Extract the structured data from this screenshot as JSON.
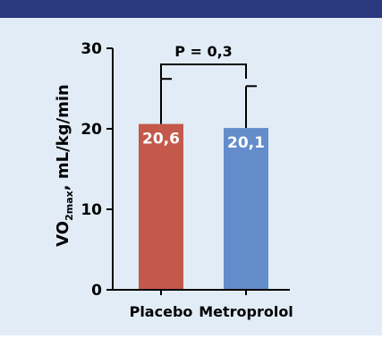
{
  "colors": {
    "top_bar": "#2a3880",
    "panel_background": "#e1ecf6",
    "axis": "#000000",
    "text": "#000000",
    "value_label": "#ffffff"
  },
  "chart_data": {
    "type": "bar",
    "categories": [
      "Placebo",
      "Metroprolol"
    ],
    "values": [
      20.6,
      20.1
    ],
    "value_labels": [
      "20,6",
      "20,1"
    ],
    "error_upper": [
      26.2,
      25.3
    ],
    "bar_colors": [
      "#c4584a",
      "#628dca"
    ],
    "y_ticks": [
      0,
      10,
      20,
      30
    ],
    "y_tick_labels": [
      "0",
      "10",
      "20",
      "30"
    ],
    "ylim": [
      0,
      30
    ],
    "ylabel": {
      "prefix": "VO",
      "subscript": "2max",
      "suffix": ", mL/kg/min"
    },
    "xlabel": "",
    "annotation": {
      "text": "P = 0,3",
      "bracket_between": [
        "Placebo",
        "Metroprolol"
      ]
    },
    "grid": false,
    "legend": "none"
  }
}
